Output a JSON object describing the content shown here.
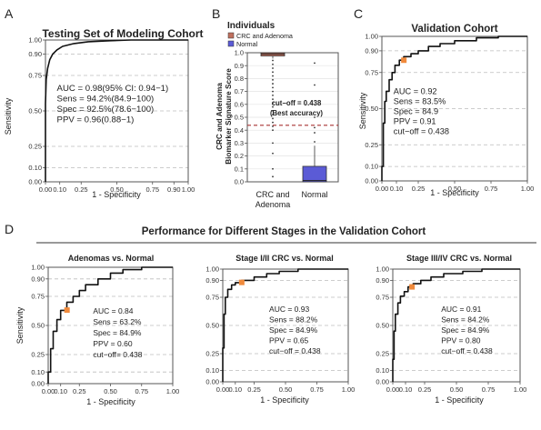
{
  "panels": {
    "A": "A",
    "B": "B",
    "C": "C",
    "D": "D"
  },
  "section_D_title": "Performance for Different Stages in the Validation Cohort",
  "chart_data": [
    {
      "id": "A",
      "type": "line",
      "title": "Testing Set of Modeling Cohort",
      "xlabel": "1 - Specificity",
      "ylabel": "Sensitivity",
      "xlim": [
        0,
        1
      ],
      "ylim": [
        0,
        1
      ],
      "x_ticks": [
        0.0,
        0.1,
        0.25,
        0.5,
        0.75,
        0.9,
        1.0
      ],
      "x_tick_labels": [
        "0.00",
        "0.10",
        "0.25",
        "0.50",
        "0.75",
        "0.90",
        "1.00"
      ],
      "y_ticks": [
        0.0,
        0.1,
        0.25,
        0.5,
        0.75,
        0.9,
        1.0
      ],
      "y_tick_labels": [
        "0.00",
        "0.10",
        "0.25",
        "0.50",
        "0.75",
        "0.90",
        "1.00"
      ],
      "grid": "dashed",
      "roc": [
        [
          0,
          0
        ],
        [
          0,
          0.55
        ],
        [
          0.005,
          0.72
        ],
        [
          0.015,
          0.8
        ],
        [
          0.03,
          0.86
        ],
        [
          0.05,
          0.9
        ],
        [
          0.08,
          0.93
        ],
        [
          0.12,
          0.955
        ],
        [
          0.2,
          0.975
        ],
        [
          0.3,
          0.988
        ],
        [
          0.45,
          0.995
        ],
        [
          0.6,
          1.0
        ],
        [
          1.0,
          1.0
        ]
      ],
      "cutoff_point": null,
      "stats": [
        "AUC = 0.98(95% CI: 0.94−1)",
        "Sens = 94.2%(84.9−100)",
        "Spec = 92.5%(78.6−100)",
        "PPV = 0.96(0.88−1)"
      ]
    },
    {
      "id": "B",
      "type": "boxplot",
      "legend_title": "Individuals",
      "legend": [
        "CRC and Adenoma",
        "Normal"
      ],
      "colors": [
        "#c0705e",
        "#5b5bd6"
      ],
      "ylabel": [
        "CRC and Adenoma",
        "Biomarker Signature Score"
      ],
      "categories": [
        "CRC and Adenoma",
        "Normal"
      ],
      "category_labels": [
        [
          "CRC and",
          "Adenoma"
        ],
        [
          "Normal"
        ]
      ],
      "ylim": [
        0,
        1
      ],
      "y_ticks": [
        0.0,
        0.1,
        0.2,
        0.3,
        0.4,
        0.5,
        0.6,
        0.7,
        0.8,
        0.9,
        1.0
      ],
      "y_tick_labels": [
        "0.0",
        "0.1",
        "0.2",
        "0.3",
        "0.4",
        "0.5",
        "0.6",
        "0.7",
        "0.8",
        "0.9",
        "1.0"
      ],
      "boxes": [
        {
          "q1": 0.975,
          "median": 0.99,
          "q3": 1.0,
          "whisker_low": 0.955,
          "whisker_high": 1.0,
          "outliers": [
            0.94,
            0.91,
            0.88,
            0.85,
            0.82,
            0.79,
            0.76,
            0.73,
            0.7,
            0.67,
            0.64,
            0.61,
            0.58,
            0.55,
            0.52,
            0.49,
            0.46,
            0.43,
            0.4,
            0.3,
            0.22,
            0.1,
            0.04
          ]
        },
        {
          "q1": 0.0,
          "median": 0.01,
          "q3": 0.12,
          "whisker_low": 0.0,
          "whisker_high": 0.28,
          "outliers": [
            0.31,
            0.38,
            0.42,
            0.5,
            0.75,
            0.92
          ]
        }
      ],
      "cutoff_line": 0.438,
      "annotation": [
        "cut−off = 0.438",
        "(Best accuracy)"
      ]
    },
    {
      "id": "C",
      "type": "line",
      "title": "Validation Cohort",
      "xlabel": "1 - Specificity",
      "ylabel": "Sensitivity",
      "xlim": [
        0,
        1
      ],
      "ylim": [
        0,
        1
      ],
      "x_ticks": [
        0.0,
        0.1,
        0.25,
        0.5,
        0.75,
        1.0
      ],
      "x_tick_labels": [
        "0.00",
        "0.10",
        "0.25",
        "0.50",
        "0.75",
        "1.00"
      ],
      "y_ticks": [
        0.0,
        0.1,
        0.25,
        0.5,
        0.75,
        0.9,
        1.0
      ],
      "y_tick_labels": [
        "0.00",
        "0.10",
        "0.25",
        "0.50",
        "0.75",
        "0.90",
        "1.00"
      ],
      "grid": "dashed",
      "roc": [
        [
          0,
          0
        ],
        [
          0,
          0.1
        ],
        [
          0.01,
          0.1
        ],
        [
          0.01,
          0.4
        ],
        [
          0.02,
          0.4
        ],
        [
          0.02,
          0.55
        ],
        [
          0.03,
          0.55
        ],
        [
          0.03,
          0.62
        ],
        [
          0.05,
          0.62
        ],
        [
          0.05,
          0.7
        ],
        [
          0.07,
          0.7
        ],
        [
          0.07,
          0.75
        ],
        [
          0.09,
          0.75
        ],
        [
          0.09,
          0.8
        ],
        [
          0.12,
          0.8
        ],
        [
          0.12,
          0.835
        ],
        [
          0.15,
          0.835
        ],
        [
          0.15,
          0.86
        ],
        [
          0.2,
          0.86
        ],
        [
          0.2,
          0.88
        ],
        [
          0.25,
          0.88
        ],
        [
          0.25,
          0.9
        ],
        [
          0.32,
          0.9
        ],
        [
          0.32,
          0.93
        ],
        [
          0.4,
          0.93
        ],
        [
          0.4,
          0.95
        ],
        [
          0.5,
          0.95
        ],
        [
          0.5,
          0.97
        ],
        [
          0.65,
          0.97
        ],
        [
          0.65,
          0.99
        ],
        [
          0.8,
          0.99
        ],
        [
          0.8,
          1.0
        ],
        [
          1.0,
          1.0
        ]
      ],
      "cutoff_point": [
        0.151,
        0.835
      ],
      "stats": [
        "AUC = 0.92",
        "Sens = 83.5%",
        "Spec = 84.9",
        "PPV = 0.91",
        "cut−off = 0.438"
      ]
    },
    {
      "id": "D1",
      "type": "line",
      "title": "Adenomas vs. Normal",
      "xlabel": "1 - Specificity",
      "ylabel": "Sensitivity",
      "xlim": [
        0,
        1
      ],
      "ylim": [
        0,
        1
      ],
      "x_ticks": [
        0.0,
        0.1,
        0.25,
        0.5,
        0.75,
        1.0
      ],
      "x_tick_labels": [
        "0.00",
        "0.10",
        "0.25",
        "0.50",
        "0.75",
        "1.00"
      ],
      "y_ticks": [
        0.0,
        0.1,
        0.25,
        0.5,
        0.75,
        0.9,
        1.0
      ],
      "y_tick_labels": [
        "0.00",
        "0.10",
        "0.25",
        "0.50",
        "0.75",
        "0.90",
        "1.00"
      ],
      "grid": "dashed",
      "roc": [
        [
          0,
          0
        ],
        [
          0,
          0.1
        ],
        [
          0.02,
          0.1
        ],
        [
          0.02,
          0.3
        ],
        [
          0.04,
          0.3
        ],
        [
          0.04,
          0.45
        ],
        [
          0.07,
          0.45
        ],
        [
          0.07,
          0.55
        ],
        [
          0.1,
          0.55
        ],
        [
          0.1,
          0.63
        ],
        [
          0.15,
          0.63
        ],
        [
          0.15,
          0.7
        ],
        [
          0.2,
          0.7
        ],
        [
          0.2,
          0.75
        ],
        [
          0.25,
          0.75
        ],
        [
          0.25,
          0.8
        ],
        [
          0.3,
          0.8
        ],
        [
          0.3,
          0.85
        ],
        [
          0.4,
          0.85
        ],
        [
          0.4,
          0.9
        ],
        [
          0.5,
          0.9
        ],
        [
          0.5,
          0.95
        ],
        [
          0.6,
          0.95
        ],
        [
          0.6,
          0.98
        ],
        [
          0.75,
          0.98
        ],
        [
          0.75,
          1.0
        ],
        [
          1.0,
          1.0
        ]
      ],
      "cutoff_point": [
        0.151,
        0.632
      ],
      "stats": [
        "AUC = 0.84",
        "Sens = 63.2%",
        "Spec = 84.9%",
        "PPV = 0.60",
        "cut−off= 0.438"
      ]
    },
    {
      "id": "D2",
      "type": "line",
      "title": "Stage I/II CRC vs. Normal",
      "xlabel": "1 - Specificity",
      "ylabel": "",
      "xlim": [
        0,
        1
      ],
      "ylim": [
        0,
        1
      ],
      "x_ticks": [
        0.0,
        0.1,
        0.25,
        0.5,
        0.75,
        1.0
      ],
      "x_tick_labels": [
        "0.00",
        "0.10",
        "0.25",
        "0.50",
        "0.75",
        "1.00"
      ],
      "y_ticks": [
        0.0,
        0.1,
        0.25,
        0.5,
        0.75,
        0.9,
        1.0
      ],
      "y_tick_labels": [
        "0.00",
        "0.10",
        "0.25",
        "0.50",
        "0.75",
        "0.90",
        "1.00"
      ],
      "grid": "dashed",
      "roc": [
        [
          0,
          0
        ],
        [
          0,
          0.3
        ],
        [
          0.01,
          0.3
        ],
        [
          0.01,
          0.6
        ],
        [
          0.02,
          0.6
        ],
        [
          0.02,
          0.75
        ],
        [
          0.04,
          0.75
        ],
        [
          0.04,
          0.82
        ],
        [
          0.07,
          0.82
        ],
        [
          0.07,
          0.86
        ],
        [
          0.1,
          0.86
        ],
        [
          0.1,
          0.88
        ],
        [
          0.15,
          0.88
        ],
        [
          0.15,
          0.9
        ],
        [
          0.25,
          0.9
        ],
        [
          0.25,
          0.93
        ],
        [
          0.35,
          0.93
        ],
        [
          0.35,
          0.96
        ],
        [
          0.45,
          0.96
        ],
        [
          0.45,
          0.98
        ],
        [
          0.6,
          0.98
        ],
        [
          0.6,
          1.0
        ],
        [
          1.0,
          1.0
        ]
      ],
      "cutoff_point": [
        0.151,
        0.882
      ],
      "stats": [
        "AUC = 0.93",
        "Sens = 88.2%",
        "Spec = 84.9%",
        "PPV = 0.65",
        "cut−off = 0.438"
      ]
    },
    {
      "id": "D3",
      "type": "line",
      "title": "Stage III/IV CRC vs. Normal",
      "xlabel": "1 - Specificity",
      "ylabel": "",
      "xlim": [
        0,
        1
      ],
      "ylim": [
        0,
        1
      ],
      "x_ticks": [
        0.0,
        0.1,
        0.25,
        0.5,
        0.75,
        1.0
      ],
      "x_tick_labels": [
        "0.00",
        "0.10",
        "0.25",
        "0.50",
        "0.75",
        "1.00"
      ],
      "y_ticks": [
        0.0,
        0.1,
        0.25,
        0.5,
        0.75,
        0.9,
        1.0
      ],
      "y_tick_labels": [
        "0.00",
        "0.10",
        "0.25",
        "0.50",
        "0.75",
        "0.90",
        "1.00"
      ],
      "grid": "dashed",
      "roc": [
        [
          0,
          0
        ],
        [
          0,
          0.2
        ],
        [
          0.01,
          0.2
        ],
        [
          0.01,
          0.45
        ],
        [
          0.02,
          0.45
        ],
        [
          0.02,
          0.6
        ],
        [
          0.04,
          0.6
        ],
        [
          0.04,
          0.7
        ],
        [
          0.06,
          0.7
        ],
        [
          0.06,
          0.76
        ],
        [
          0.09,
          0.76
        ],
        [
          0.09,
          0.8
        ],
        [
          0.12,
          0.8
        ],
        [
          0.12,
          0.842
        ],
        [
          0.16,
          0.842
        ],
        [
          0.16,
          0.87
        ],
        [
          0.22,
          0.87
        ],
        [
          0.22,
          0.9
        ],
        [
          0.3,
          0.9
        ],
        [
          0.3,
          0.93
        ],
        [
          0.4,
          0.93
        ],
        [
          0.4,
          0.96
        ],
        [
          0.55,
          0.96
        ],
        [
          0.55,
          0.98
        ],
        [
          0.7,
          0.98
        ],
        [
          0.7,
          1.0
        ],
        [
          1.0,
          1.0
        ]
      ],
      "cutoff_point": [
        0.151,
        0.842
      ],
      "stats": [
        "AUC = 0.91",
        "Sens = 84.2%",
        "Spec = 84.9%",
        "PPV = 0.80",
        "cut−off = 0.438"
      ]
    }
  ]
}
